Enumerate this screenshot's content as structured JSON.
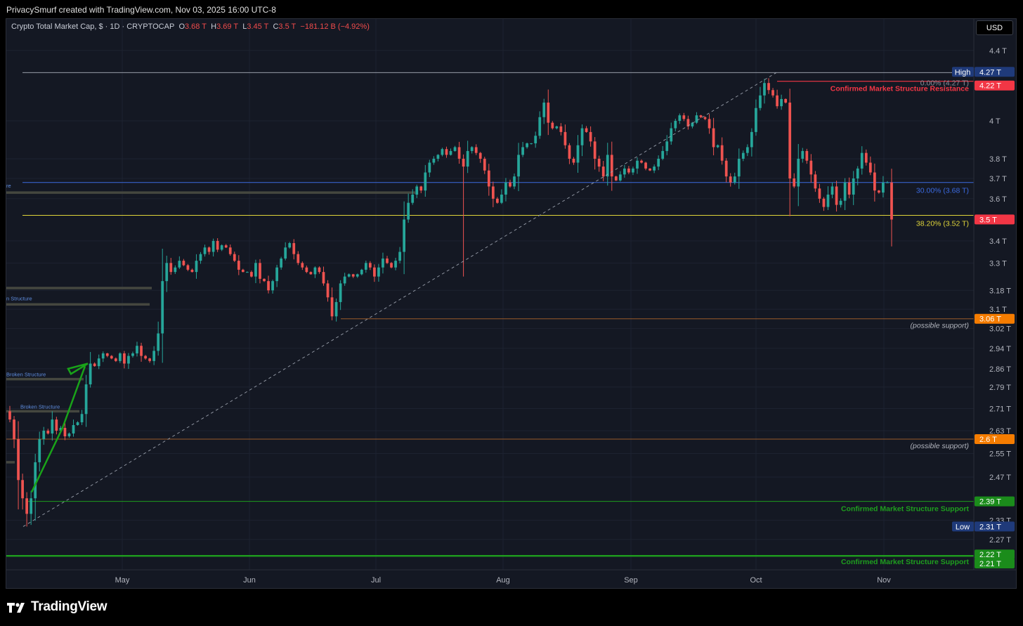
{
  "header": {
    "title": "PrivacySmurf created with TradingView.com, Nov 03, 2025 16:00 UTC-8"
  },
  "legend": {
    "symbol": "Crypto Total Market Cap, $ · 1D · CRYPTOCAP",
    "open_label": "O",
    "open": "3.68 T",
    "high_label": "H",
    "high": "3.69 T",
    "low_label": "L",
    "low": "3.45 T",
    "close_label": "C",
    "close": "3.5 T",
    "change": "−181.12 B (−4.92%)"
  },
  "currency_button": "USD",
  "footer": {
    "brand": "TradingView"
  },
  "colors": {
    "background": "#141823",
    "up": "#26a69a",
    "down": "#ef5350",
    "resistance": "#f23645",
    "support": "#1e9e1e",
    "fib_30": "#3b6ae0",
    "fib_382": "#e0d53a",
    "possible_support": "#c26a2a"
  },
  "chart_data": {
    "type": "candlestick",
    "y_scale": "log",
    "x_labels": [
      "May",
      "Jun",
      "Jul",
      "Aug",
      "Sep",
      "Oct",
      "Nov"
    ],
    "y_ticks": [
      "4.4 T",
      "4 T",
      "3.8 T",
      "3.7 T",
      "3.6 T",
      "3.4 T",
      "3.3 T",
      "3.18 T",
      "3.1 T",
      "3.02 T",
      "2.94 T",
      "2.86 T",
      "2.79 T",
      "2.71 T",
      "2.63 T",
      "2.55 T",
      "2.47 T",
      "2.33 T",
      "2.27 T"
    ],
    "y_tick_values": [
      4.4,
      4.0,
      3.8,
      3.7,
      3.6,
      3.4,
      3.3,
      3.18,
      3.1,
      3.02,
      2.94,
      2.86,
      2.79,
      2.71,
      2.63,
      2.55,
      2.47,
      2.33,
      2.27
    ],
    "price_badges": [
      {
        "prefix": "High",
        "label": "4.27 T",
        "value": 4.27,
        "color": "#1f3a7a"
      },
      {
        "label": "4.22 T",
        "value": 4.22,
        "color": "#f23645"
      },
      {
        "label": "3.5 T",
        "value": 3.5,
        "color": "#f23645"
      },
      {
        "label": "3.06 T",
        "value": 3.06,
        "color": "#f57c00"
      },
      {
        "label": "2.6 T",
        "value": 2.6,
        "color": "#f57c00"
      },
      {
        "label": "2.39 T",
        "value": 2.39,
        "color": "#1b8c1b"
      },
      {
        "prefix": "Low",
        "label": "2.31 T",
        "value": 2.31,
        "color": "#1f3a7a"
      },
      {
        "label": "2.22 T",
        "value": 2.22,
        "color": "#1b8c1b"
      },
      {
        "label": "2.21 T",
        "value": 2.21,
        "color": "#1b8c1b"
      }
    ],
    "levels": [
      {
        "value": 4.27,
        "label": "0.00% (4.27 T)",
        "color": "#8a8e99"
      },
      {
        "value": 4.22,
        "label": "Confirmed Market Structure Resistance",
        "color": "#f23645"
      },
      {
        "value": 3.68,
        "label": "30.00% (3.68 T)",
        "color": "#3b6ae0"
      },
      {
        "value": 3.52,
        "label": "38.20% (3.52 T)",
        "color": "#e0d53a"
      },
      {
        "value": 3.06,
        "label": "(possible support)",
        "color": "#b06a3a"
      },
      {
        "value": 2.6,
        "label": "(possible support)",
        "color": "#b06a3a"
      },
      {
        "value": 2.39,
        "label": "Confirmed Market Structure Support",
        "color": "#1e9e1e"
      },
      {
        "value": 2.22,
        "label": "Confirmed Market Structure Support",
        "color": "#1e9e1e"
      }
    ],
    "structure_labels": [
      "re",
      "n Structure",
      "Broken Structure",
      "Broken Structure"
    ],
    "close": [
      2.67,
      2.6,
      2.46,
      2.4,
      2.35,
      2.4,
      2.52,
      2.6,
      2.63,
      2.62,
      2.67,
      2.63,
      2.64,
      2.61,
      2.62,
      2.65,
      2.66,
      2.69,
      2.8,
      2.88,
      2.87,
      2.9,
      2.92,
      2.91,
      2.9,
      2.89,
      2.92,
      2.88,
      2.91,
      2.92,
      2.95,
      2.91,
      2.9,
      2.89,
      2.93,
      3.0,
      3.22,
      3.3,
      3.26,
      3.28,
      3.31,
      3.29,
      3.27,
      3.26,
      3.31,
      3.34,
      3.37,
      3.35,
      3.4,
      3.36,
      3.38,
      3.37,
      3.34,
      3.31,
      3.27,
      3.26,
      3.26,
      3.24,
      3.3,
      3.23,
      3.22,
      3.18,
      3.22,
      3.28,
      3.32,
      3.37,
      3.39,
      3.34,
      3.3,
      3.28,
      3.26,
      3.25,
      3.28,
      3.26,
      3.21,
      3.15,
      3.07,
      3.13,
      3.21,
      3.24,
      3.25,
      3.24,
      3.25,
      3.27,
      3.3,
      3.28,
      3.24,
      3.28,
      3.32,
      3.3,
      3.28,
      3.31,
      3.35,
      3.5,
      3.58,
      3.62,
      3.66,
      3.64,
      3.73,
      3.78,
      3.8,
      3.82,
      3.85,
      3.82,
      3.84,
      3.86,
      3.8,
      3.76,
      3.84,
      3.86,
      3.83,
      3.8,
      3.74,
      3.66,
      3.6,
      3.58,
      3.62,
      3.68,
      3.66,
      3.71,
      3.82,
      3.86,
      3.88,
      3.88,
      3.92,
      4.02,
      4.1,
      3.99,
      3.96,
      3.97,
      3.94,
      3.87,
      3.8,
      3.78,
      3.87,
      3.96,
      3.94,
      3.89,
      3.8,
      3.76,
      3.71,
      3.82,
      3.71,
      3.69,
      3.72,
      3.75,
      3.73,
      3.75,
      3.79,
      3.78,
      3.75,
      3.74,
      3.76,
      3.8,
      3.84,
      3.89,
      3.96,
      4.0,
      4.03,
      4.01,
      3.97,
      3.99,
      4.03,
      4.02,
      4.01,
      3.96,
      3.86,
      3.87,
      3.79,
      3.71,
      3.68,
      3.71,
      3.8,
      3.83,
      3.86,
      3.94,
      4.07,
      4.14,
      4.21,
      4.17,
      4.14,
      4.08,
      4.12,
      4.1,
      3.7,
      3.66,
      3.8,
      3.84,
      3.79,
      3.72,
      3.65,
      3.6,
      3.56,
      3.62,
      3.66,
      3.57,
      3.59,
      3.68,
      3.62,
      3.7,
      3.75,
      3.83,
      3.78,
      3.73,
      3.64,
      3.63,
      3.68,
      3.68,
      3.5
    ]
  }
}
